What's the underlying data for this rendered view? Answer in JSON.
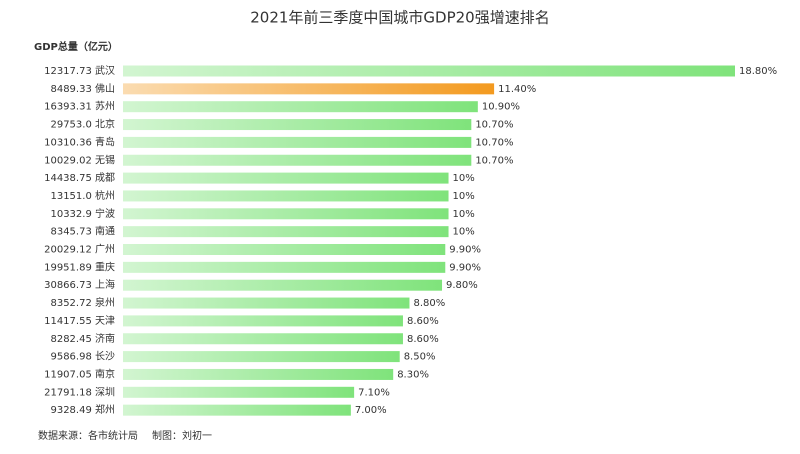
{
  "chart_data": {
    "type": "hbar",
    "title": "2021年前三季度中国城市GDP20强增速排名",
    "axis_label": "GDP总量（亿元）",
    "source": "数据来源：各市统计局",
    "credit": "制图：刘初一",
    "categories": [
      "12317.73 武汉",
      "8489.33 佛山",
      "16393.31 苏州",
      "29753.0 北京",
      "10310.36 青岛",
      "10029.02 无锡",
      "14438.75 成都",
      "13151.0 杭州",
      "10332.9 宁波",
      "8345.73 南通",
      "20029.12 广州",
      "19951.89 重庆",
      "30866.73 上海",
      "8352.72 泉州",
      "11417.55 天津",
      "8282.45 济南",
      "9586.98 长沙",
      "11907.05 南京",
      "21791.18 深圳",
      "9328.49 郑州"
    ],
    "values": [
      18.8,
      11.4,
      10.9,
      10.7,
      10.7,
      10.7,
      10,
      10,
      10,
      10,
      9.9,
      9.9,
      9.8,
      8.8,
      8.6,
      8.6,
      8.5,
      8.3,
      7.1,
      7.0
    ],
    "value_labels": [
      "18.80%",
      "11.40%",
      "10.90%",
      "10.70%",
      "10.70%",
      "10.70%",
      "10%",
      "10%",
      "10%",
      "10%",
      "9.90%",
      "9.90%",
      "9.80%",
      "8.80%",
      "8.60%",
      "8.60%",
      "8.50%",
      "8.30%",
      "7.10%",
      "7.00%"
    ],
    "colors": [
      "#7fe37b",
      "#f39a1f",
      "#7fe37b",
      "#7fe37b",
      "#7fe37b",
      "#7fe37b",
      "#7fe37b",
      "#7fe37b",
      "#7fe37b",
      "#7fe37b",
      "#7fe37b",
      "#7fe37b",
      "#7fe37b",
      "#7fe37b",
      "#7fe37b",
      "#7fe37b",
      "#7fe37b",
      "#7fe37b",
      "#7fe37b",
      "#7fe37b"
    ],
    "label_colors": [
      "#333333",
      "#f39a1f",
      "#333333",
      "#333333",
      "#333333",
      "#333333",
      "#333333",
      "#333333",
      "#333333",
      "#333333",
      "#333333",
      "#333333",
      "#333333",
      "#333333",
      "#333333",
      "#333333",
      "#333333",
      "#333333",
      "#333333",
      "#333333"
    ]
  }
}
